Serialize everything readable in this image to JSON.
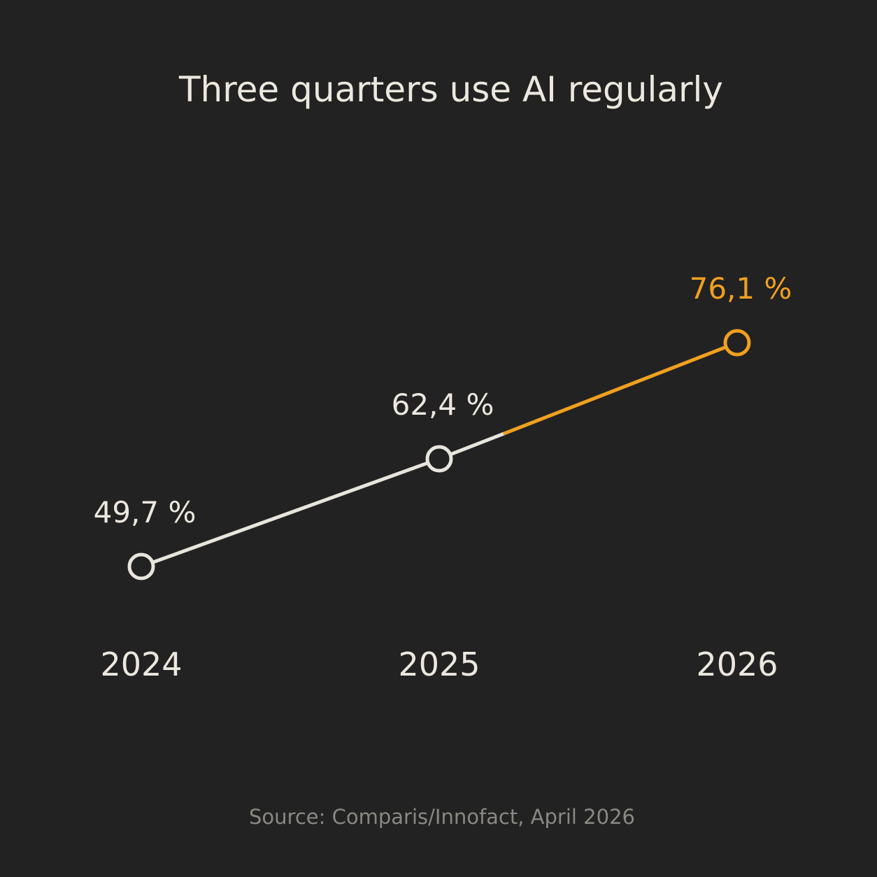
{
  "chart_data": {
    "type": "line",
    "title": "Three quarters use AI regularly",
    "x": [
      "2024",
      "2025",
      "2026"
    ],
    "values": [
      49.7,
      62.4,
      76.1
    ],
    "data_labels": [
      "49,7 %",
      "62,4 %",
      "76,1 %"
    ],
    "xlabel": "",
    "ylabel": "",
    "grid": false,
    "legend": "none",
    "highlight_index": 2,
    "colors": {
      "background": "#222222",
      "line": "#e8e5dd",
      "highlight": "#f0a020",
      "text": "#ece8df",
      "source_text": "#8a8883"
    }
  },
  "source": "Source: Comparis/Innofact, April 2026"
}
